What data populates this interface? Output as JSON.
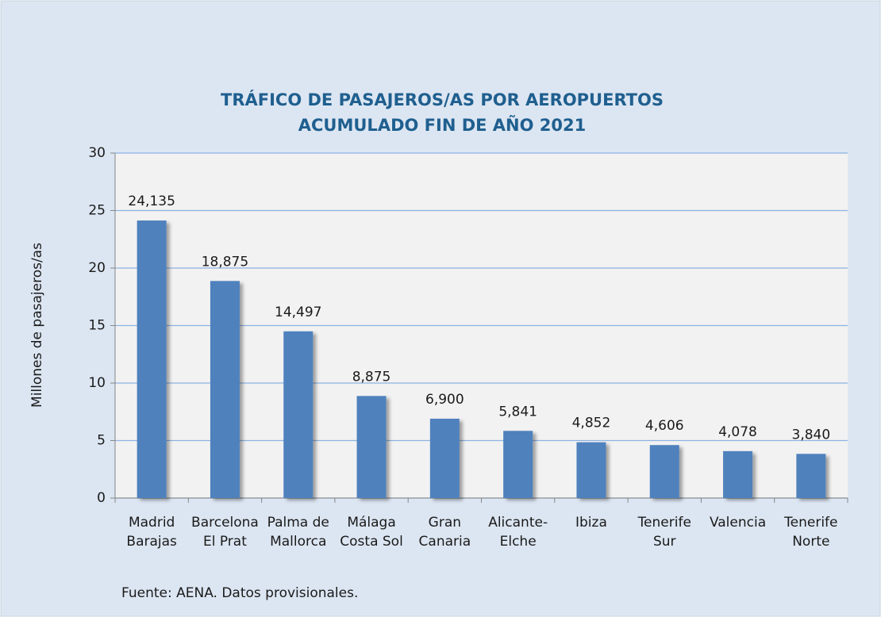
{
  "chart_data": {
    "type": "bar",
    "title": [
      "TRÁFICO DE PASAJEROS/AS POR AEROPUERTOS",
      "ACUMULADO FIN DE AÑO 2021"
    ],
    "y_label": "Millones de pasajeros/as",
    "source": "Fuente: AENA. Datos provisionales.",
    "categories": [
      [
        "Madrid",
        "Barajas"
      ],
      [
        "Barcelona",
        "El Prat"
      ],
      [
        "Palma de",
        "Mallorca"
      ],
      [
        "Málaga",
        "Costa Sol"
      ],
      [
        "Gran",
        "Canaria"
      ],
      [
        "Alicante-",
        "Elche"
      ],
      [
        "Ibiza"
      ],
      [
        "Tenerife",
        "Sur"
      ],
      [
        "Valencia"
      ],
      [
        "Tenerife",
        "Norte"
      ]
    ],
    "values": [
      24.135,
      18.875,
      14.497,
      8.875,
      6.9,
      5.841,
      4.852,
      4.606,
      4.078,
      3.84
    ],
    "value_labels": [
      "24,135",
      "18,875",
      "14,497",
      "8,875",
      "6,900",
      "5,841",
      "4,852",
      "4,606",
      "4,078",
      "3,840"
    ],
    "color": "#4f81bd",
    "ylim": [
      0,
      30
    ],
    "yticks": [
      0,
      5,
      10,
      15,
      20,
      25,
      30
    ],
    "grid": true
  }
}
